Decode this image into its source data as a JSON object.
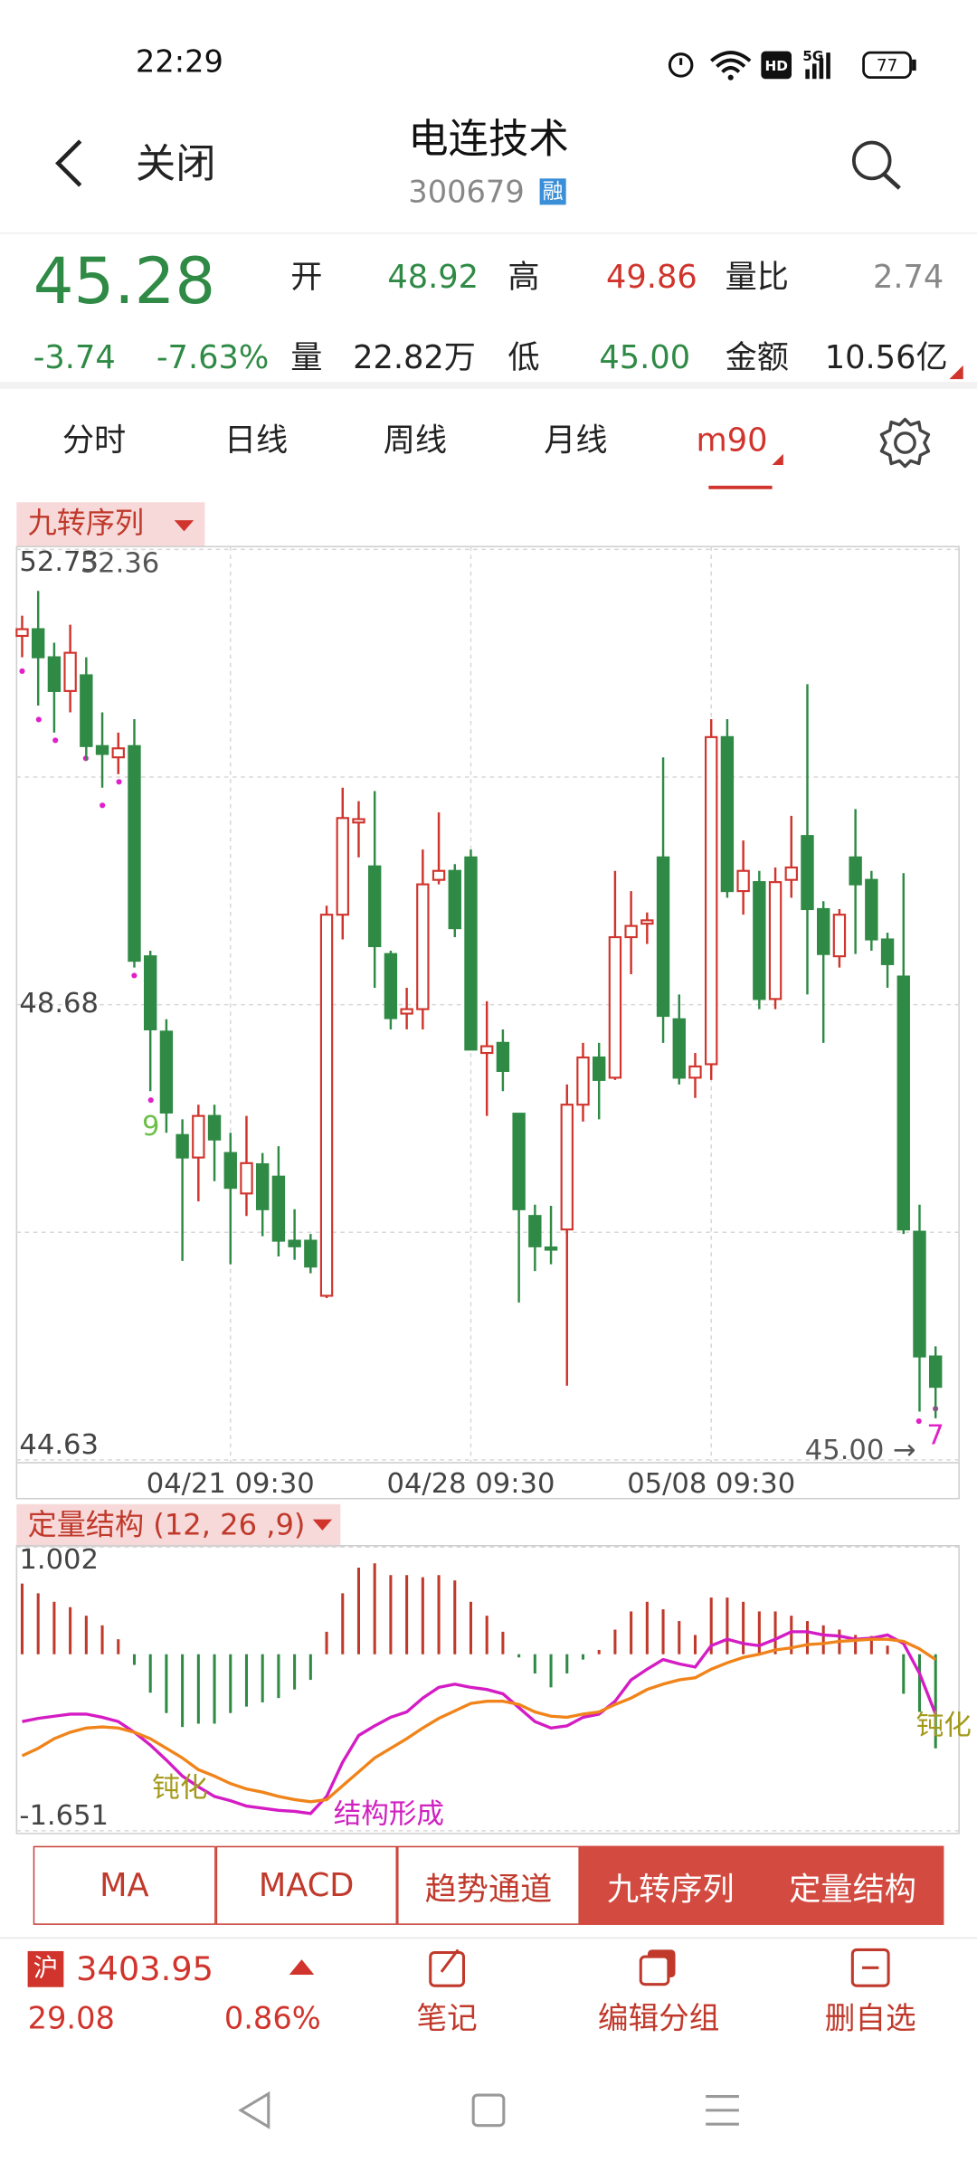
{
  "status_bar": {
    "time": "22:29",
    "hd": "HD",
    "network": "5G",
    "battery": "77"
  },
  "header": {
    "back": "关闭",
    "title": "电连技术",
    "code": "300679",
    "badge": "融"
  },
  "quote": {
    "price": "45.28",
    "change": "-3.74",
    "change_pct": "-7.63%",
    "open_label": "开",
    "open": "48.92",
    "high_label": "高",
    "high": "49.86",
    "ratio_label": "量比",
    "ratio": "2.74",
    "volume_label": "量",
    "volume": "22.82万",
    "low_label": "低",
    "low": "45.00",
    "amount_label": "金额",
    "amount": "10.56亿"
  },
  "tabs": [
    "分时",
    "日线",
    "周线",
    "月线",
    "m90"
  ],
  "chart_data": [
    {
      "type": "candlestick",
      "title": "九转序列",
      "categories": [
        null,
        null,
        null,
        null,
        null,
        null,
        null,
        null,
        null,
        null,
        null,
        null,
        null,
        "04/21 09:30",
        null,
        null,
        null,
        null,
        null,
        null,
        null,
        null,
        null,
        null,
        null,
        null,
        null,
        null,
        "04/28 09:30",
        null,
        null,
        null,
        null,
        null,
        null,
        null,
        null,
        null,
        null,
        null,
        null,
        null,
        null,
        "05/08 09:30",
        null,
        null,
        null,
        null,
        null,
        null,
        null,
        null,
        null,
        null,
        null,
        null,
        null,
        null
      ],
      "open": [
        51.96,
        52.02,
        51.77,
        51.47,
        51.61,
        50.98,
        50.88,
        50.98,
        49.11,
        48.44,
        47.52,
        47.32,
        47.69,
        47.36,
        47.0,
        47.26,
        47.15,
        46.58,
        46.58,
        46.09,
        49.48,
        50.3,
        49.91,
        49.13,
        48.6,
        48.64,
        49.79,
        49.87,
        49.99,
        48.25,
        48.34,
        47.71,
        46.8,
        46.52,
        46.68,
        47.79,
        48.21,
        48.03,
        49.28,
        49.4,
        49.99,
        48.55,
        48.03,
        48.15,
        51.06,
        49.69,
        49.77,
        48.73,
        49.79,
        50.18,
        49.53,
        49.11,
        49.99,
        49.79,
        49.26,
        48.93,
        46.66,
        45.55
      ],
      "high": [
        52.14,
        52.36,
        51.9,
        52.06,
        51.77,
        51.28,
        51.1,
        51.22,
        49.16,
        48.55,
        47.66,
        47.79,
        47.79,
        47.54,
        47.69,
        47.36,
        47.42,
        46.86,
        46.64,
        49.56,
        50.61,
        50.49,
        50.58,
        49.16,
        48.83,
        50.06,
        50.39,
        49.93,
        50.06,
        48.71,
        48.46,
        47.71,
        46.9,
        46.89,
        47.97,
        48.34,
        48.34,
        49.87,
        49.69,
        49.5,
        50.88,
        48.77,
        48.25,
        51.22,
        51.22,
        50.14,
        49.87,
        49.9,
        50.36,
        51.53,
        49.6,
        49.53,
        50.42,
        49.87,
        49.32,
        49.85,
        46.9,
        45.64
      ],
      "low": [
        51.77,
        51.34,
        51.1,
        51.28,
        50.85,
        50.61,
        50.73,
        49.01,
        47.91,
        47.54,
        46.4,
        46.93,
        47.11,
        46.37,
        46.8,
        46.62,
        46.44,
        46.41,
        46.29,
        46.07,
        49.26,
        49.99,
        48.83,
        48.46,
        48.46,
        48.46,
        49.75,
        49.28,
        48.28,
        47.69,
        47.91,
        46.03,
        46.31,
        46.37,
        45.29,
        47.64,
        47.66,
        48.01,
        48.95,
        49.22,
        48.34,
        47.97,
        47.85,
        48.01,
        49.63,
        49.48,
        48.64,
        48.64,
        49.63,
        48.77,
        48.34,
        49.01,
        49.13,
        49.16,
        48.83,
        46.64,
        45.06,
        45.0
      ],
      "close": [
        52.02,
        51.77,
        51.47,
        51.81,
        50.98,
        50.91,
        50.96,
        49.07,
        48.46,
        47.72,
        47.32,
        47.69,
        47.48,
        47.05,
        47.27,
        46.86,
        46.58,
        46.53,
        46.35,
        49.48,
        50.34,
        50.33,
        49.2,
        48.56,
        48.64,
        49.75,
        49.87,
        49.36,
        48.28,
        48.31,
        48.09,
        46.86,
        46.53,
        46.5,
        47.79,
        48.21,
        48.01,
        49.28,
        49.38,
        49.43,
        48.58,
        48.03,
        48.13,
        51.06,
        49.69,
        49.87,
        48.73,
        49.77,
        49.9,
        49.53,
        49.13,
        49.48,
        49.75,
        49.26,
        49.04,
        46.68,
        45.55,
        45.28
      ],
      "up_color": "#d0342c",
      "down_color": "#2f8a45",
      "ylim": [
        44.63,
        52.73
      ],
      "yticks": [
        52.73,
        48.68,
        44.63
      ],
      "annotations": [
        "52.36",
        "45.00 →",
        "9",
        "7"
      ]
    },
    {
      "type": "macd",
      "title": "定量结构 (12, 26 ,9)",
      "values": [
        0.66,
        0.57,
        0.49,
        0.44,
        0.36,
        0.27,
        0.14,
        -0.1,
        -0.36,
        -0.55,
        -0.68,
        -0.65,
        -0.65,
        -0.55,
        -0.49,
        -0.45,
        -0.41,
        -0.33,
        -0.24,
        0.21,
        0.57,
        0.81,
        0.85,
        0.74,
        0.74,
        0.72,
        0.74,
        0.69,
        0.49,
        0.36,
        0.21,
        -0.03,
        -0.18,
        -0.31,
        -0.18,
        -0.05,
        0.04,
        0.23,
        0.4,
        0.49,
        0.42,
        0.31,
        0.18,
        0.53,
        0.53,
        0.49,
        0.4,
        0.4,
        0.36,
        0.31,
        0.27,
        0.23,
        0.18,
        0.17,
        0.08,
        -0.37,
        -0.54,
        -0.88
      ],
      "up_color": "#c0392b",
      "down_color": "#2f8a45",
      "series": [
        {
          "color": "#d41cc4",
          "values": [
            -0.63,
            -0.6,
            -0.58,
            -0.56,
            -0.56,
            -0.59,
            -0.63,
            -0.73,
            -0.85,
            -0.99,
            -1.14,
            -1.24,
            -1.33,
            -1.37,
            -1.42,
            -1.44,
            -1.46,
            -1.47,
            -1.49,
            -1.33,
            -1.01,
            -0.76,
            -0.67,
            -0.59,
            -0.54,
            -0.41,
            -0.31,
            -0.28,
            -0.31,
            -0.33,
            -0.37,
            -0.5,
            -0.63,
            -0.69,
            -0.67,
            -0.59,
            -0.56,
            -0.44,
            -0.24,
            -0.14,
            -0.05,
            -0.09,
            -0.12,
            0.08,
            0.14,
            0.1,
            0.08,
            0.14,
            0.21,
            0.21,
            0.18,
            0.17,
            0.14,
            0.15,
            0.18,
            0.1,
            -0.18,
            -0.56
          ]
        },
        {
          "color": "#f0841a",
          "values": [
            -0.95,
            -0.88,
            -0.79,
            -0.73,
            -0.69,
            -0.68,
            -0.69,
            -0.73,
            -0.79,
            -0.88,
            -0.97,
            -1.08,
            -1.14,
            -1.21,
            -1.26,
            -1.29,
            -1.33,
            -1.36,
            -1.38,
            -1.36,
            -1.23,
            -1.1,
            -0.97,
            -0.88,
            -0.79,
            -0.69,
            -0.6,
            -0.53,
            -0.46,
            -0.44,
            -0.44,
            -0.47,
            -0.54,
            -0.58,
            -0.59,
            -0.56,
            -0.54,
            -0.47,
            -0.41,
            -0.33,
            -0.28,
            -0.24,
            -0.22,
            -0.14,
            -0.08,
            -0.03,
            0.0,
            0.04,
            0.06,
            0.09,
            0.1,
            0.12,
            0.13,
            0.14,
            0.14,
            0.12,
            0.05,
            -0.05
          ]
        }
      ],
      "ylim": [
        -1.651,
        1.002
      ],
      "yticks": [
        1.002,
        -1.651
      ],
      "annotations": [
        "钝化",
        "结构形成",
        "钝化"
      ]
    }
  ],
  "indicator_buttons": [
    "MA",
    "MACD",
    "趋势通道",
    "九转序列",
    "定量结构"
  ],
  "footer": {
    "index_badge": "沪",
    "index_value": "3403.95",
    "index_change": "29.08",
    "index_pct": "0.86%",
    "actions": [
      "笔记",
      "编辑分组",
      "删自选"
    ]
  }
}
